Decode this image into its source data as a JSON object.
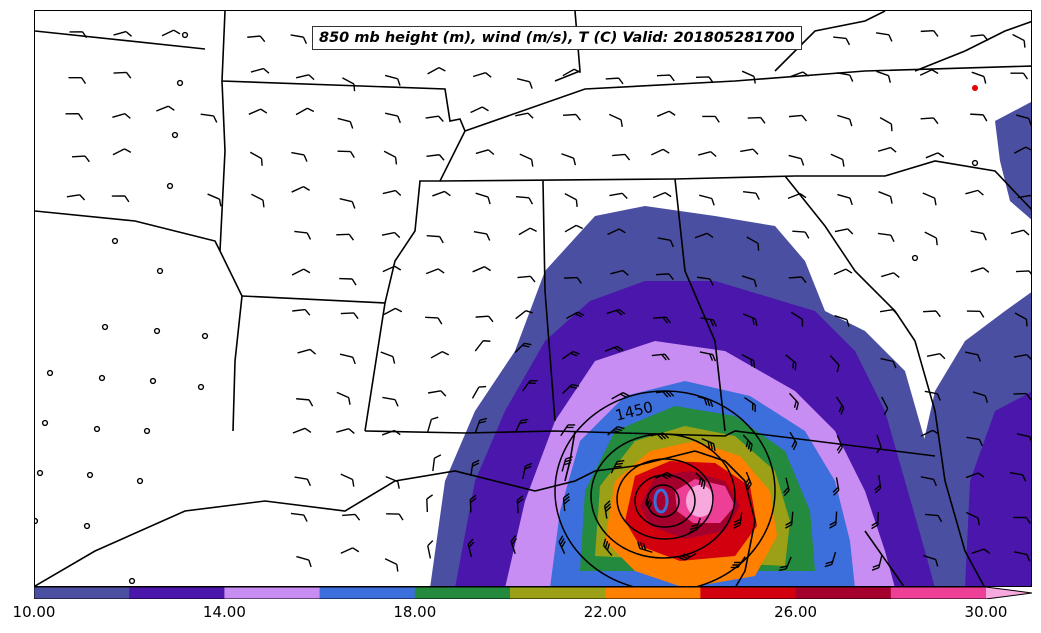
{
  "title": "850 mb height (m), wind (m/s), T (C) Valid: 201805281700",
  "contour_label": "1450",
  "colorbar": {
    "bounds": [
      10,
      30
    ],
    "colors": [
      "#4b4fa1",
      "#4a16ab",
      "#c88df2",
      "#3c6edc",
      "#238a3e",
      "#9ba017",
      "#ff7f00",
      "#d2000e",
      "#a5002d",
      "#ee3f96",
      "#f7a8dc"
    ],
    "tick_labels": [
      "10.00",
      "14.00",
      "18.00",
      "22.00",
      "26.00",
      "30.00"
    ],
    "tick_values": [
      10,
      14,
      18,
      22,
      26,
      30
    ],
    "extend": "max"
  }
}
